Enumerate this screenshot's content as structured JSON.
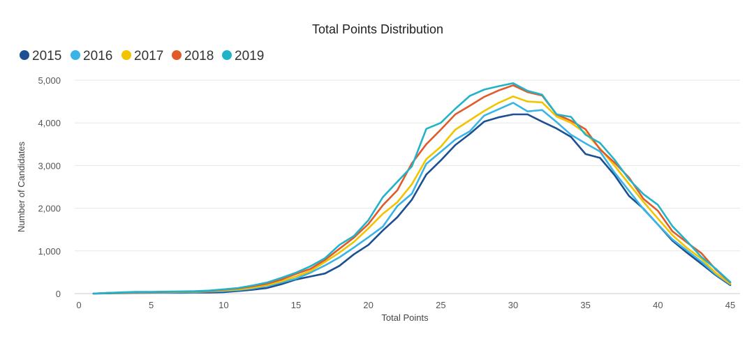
{
  "chart_data": {
    "type": "line",
    "title": "Total Points Distribution",
    "xlabel": "Total Points",
    "ylabel": "Number of Candidates",
    "xlim": [
      0,
      45
    ],
    "ylim": [
      0,
      5000
    ],
    "x_ticks": [
      0,
      5,
      10,
      15,
      20,
      25,
      30,
      35,
      40,
      45
    ],
    "x_tick_labels": [
      "0",
      "5",
      "10",
      "15",
      "20",
      "25",
      "30",
      "35",
      "40",
      "45"
    ],
    "y_ticks": [
      0,
      1000,
      2000,
      3000,
      4000,
      5000
    ],
    "y_tick_labels": [
      "0",
      "1,000",
      "2,000",
      "3,000",
      "4,000",
      "5,000"
    ],
    "grid": true,
    "legend_position": "top-left",
    "x": [
      1,
      2,
      3,
      4,
      5,
      6,
      7,
      8,
      9,
      10,
      11,
      12,
      13,
      14,
      15,
      16,
      17,
      18,
      19,
      20,
      21,
      22,
      23,
      24,
      25,
      26,
      27,
      28,
      29,
      30,
      31,
      32,
      33,
      34,
      35,
      36,
      37,
      38,
      39,
      40,
      41,
      42,
      43,
      44,
      45
    ],
    "series": [
      {
        "name": "2015",
        "color": "#1d4f91",
        "values": [
          0,
          5,
          10,
          15,
          20,
          20,
          20,
          25,
          25,
          35,
          60,
          90,
          130,
          220,
          330,
          400,
          470,
          650,
          920,
          1140,
          1480,
          1790,
          2200,
          2790,
          3120,
          3480,
          3740,
          4030,
          4130,
          4200,
          4200,
          4030,
          3870,
          3670,
          3270,
          3180,
          2780,
          2290,
          1990,
          1620,
          1240,
          960,
          700,
          430,
          200
        ]
      },
      {
        "name": "2016",
        "color": "#3ab4e6",
        "values": [
          0,
          10,
          15,
          20,
          25,
          25,
          30,
          35,
          45,
          60,
          80,
          120,
          180,
          260,
          350,
          490,
          660,
          850,
          1080,
          1320,
          1570,
          2050,
          2340,
          3040,
          3320,
          3610,
          3800,
          4170,
          4320,
          4470,
          4270,
          4300,
          4020,
          3720,
          3520,
          3330,
          2840,
          2410,
          1980,
          1620,
          1270,
          1010,
          750,
          450,
          220
        ]
      },
      {
        "name": "2017",
        "color": "#f2c400",
        "values": [
          0,
          15,
          20,
          30,
          35,
          35,
          40,
          45,
          55,
          75,
          100,
          140,
          200,
          290,
          400,
          530,
          740,
          960,
          1210,
          1530,
          1870,
          2140,
          2560,
          3150,
          3440,
          3840,
          4060,
          4280,
          4470,
          4620,
          4500,
          4480,
          4150,
          4000,
          3760,
          3400,
          3000,
          2570,
          2150,
          1760,
          1370,
          1070,
          820,
          480,
          230
        ]
      },
      {
        "name": "2018",
        "color": "#e05a2b",
        "values": [
          0,
          15,
          25,
          30,
          35,
          40,
          45,
          50,
          60,
          90,
          120,
          170,
          230,
          330,
          460,
          580,
          790,
          1050,
          1310,
          1630,
          2070,
          2420,
          3050,
          3500,
          3840,
          4200,
          4400,
          4610,
          4760,
          4880,
          4720,
          4640,
          4200,
          4050,
          3850,
          3380,
          3070,
          2720,
          2220,
          1940,
          1460,
          1200,
          950,
          560,
          260
        ]
      },
      {
        "name": "2019",
        "color": "#23b3c9",
        "values": [
          0,
          15,
          30,
          40,
          40,
          45,
          50,
          55,
          70,
          100,
          130,
          190,
          260,
          370,
          490,
          640,
          830,
          1140,
          1350,
          1720,
          2260,
          2620,
          2980,
          3860,
          4000,
          4330,
          4630,
          4780,
          4860,
          4930,
          4750,
          4660,
          4200,
          4140,
          3720,
          3530,
          3140,
          2680,
          2330,
          2080,
          1580,
          1230,
          860,
          580,
          270
        ]
      }
    ]
  }
}
